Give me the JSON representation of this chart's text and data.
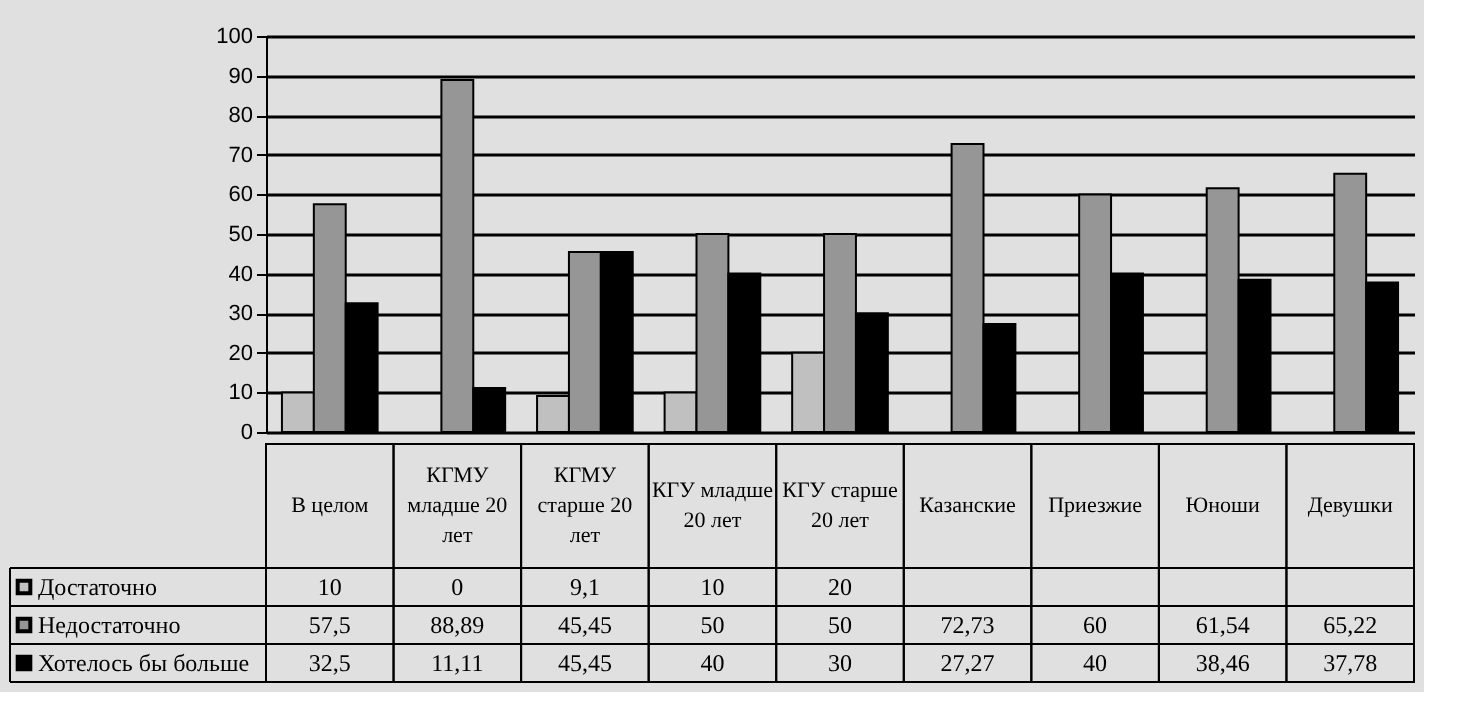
{
  "chart_data": {
    "type": "bar",
    "categories": [
      "В целом",
      "КГМУ младше 20 лет",
      "КГМУ старше 20 лет",
      "КГУ младше 20 лет",
      "КГУ старше 20 лет",
      "Казанские",
      "Приезжие",
      "Юноши",
      "Девушки"
    ],
    "series": [
      {
        "name": "Достаточно",
        "color": "#c0c0c0",
        "values": [
          10,
          0,
          9.1,
          10,
          20,
          null,
          null,
          null,
          null
        ],
        "value_labels": [
          "10",
          "0",
          "9,1",
          "10",
          "20",
          null,
          null,
          null,
          null
        ]
      },
      {
        "name": "Недостаточно",
        "color": "#969696",
        "values": [
          57.5,
          88.89,
          45.45,
          50,
          50,
          72.73,
          60,
          61.54,
          65.22
        ],
        "value_labels": [
          "57,5",
          "88,89",
          "45,45",
          "50",
          "50",
          "72,73",
          "60",
          "61,54",
          "65,22"
        ]
      },
      {
        "name": "Хотелось бы больше",
        "color": "#000000",
        "values": [
          32.5,
          11.11,
          45.45,
          40,
          30,
          27.27,
          40,
          38.46,
          37.78
        ],
        "value_labels": [
          "32,5",
          "11,11",
          "45,45",
          "40",
          "30",
          "27,27",
          "40",
          "38,46",
          "37,78"
        ]
      }
    ],
    "ylim": [
      0,
      100
    ],
    "yticks": [
      0,
      10,
      20,
      30,
      40,
      50,
      60,
      70,
      80,
      90,
      100
    ],
    "grid": "y",
    "legend": "bottom left"
  }
}
